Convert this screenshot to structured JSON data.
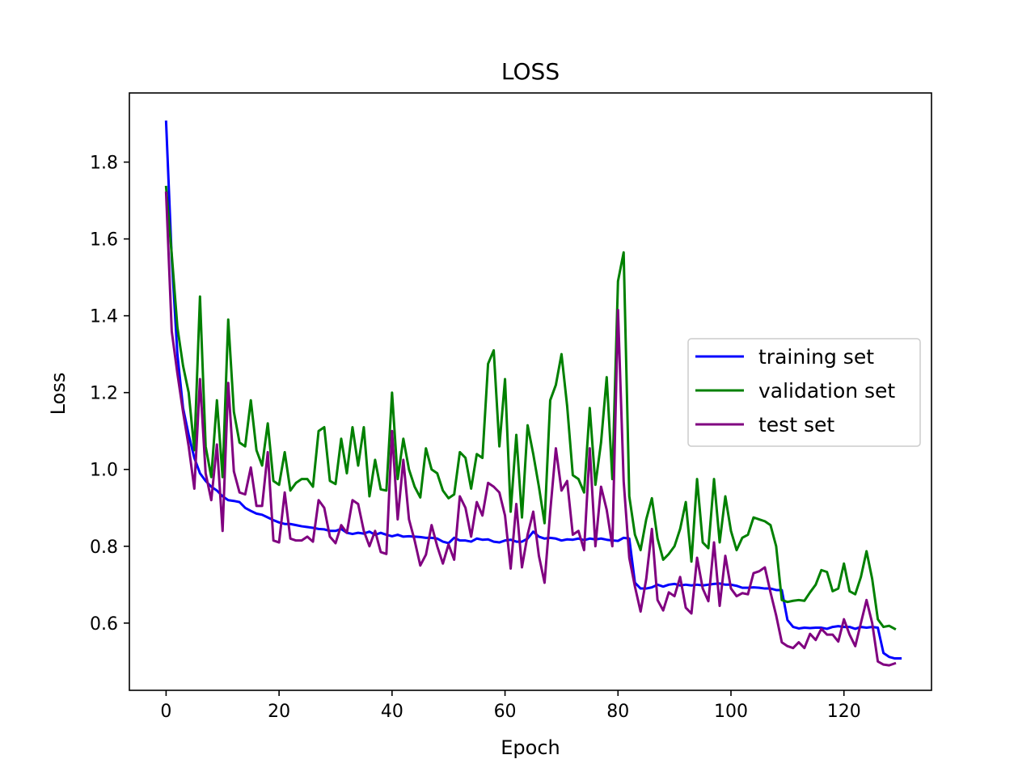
{
  "chart_data": {
    "type": "line",
    "title": "LOSS",
    "xlabel": "Epoch",
    "ylabel": "Loss",
    "xlim": [
      -6.5,
      135.5
    ],
    "ylim": [
      0.425,
      1.98
    ],
    "xticks": [
      0,
      20,
      40,
      60,
      80,
      100,
      120
    ],
    "yticks": [
      0.6,
      0.8,
      1.0,
      1.2,
      1.4,
      1.6,
      1.8
    ],
    "xtick_labels": [
      "0",
      "20",
      "40",
      "60",
      "80",
      "100",
      "120"
    ],
    "ytick_labels": [
      "0.6",
      "0.8",
      "1.0",
      "1.2",
      "1.4",
      "1.6",
      "1.8"
    ],
    "grid": false,
    "legend_position": "center-right",
    "series": [
      {
        "name": "training set",
        "color": "#0000ff",
        "values": [
          1.905,
          1.55,
          1.3,
          1.16,
          1.09,
          1.03,
          0.99,
          0.97,
          0.955,
          0.945,
          0.93,
          0.92,
          0.918,
          0.915,
          0.9,
          0.892,
          0.885,
          0.882,
          0.875,
          0.868,
          0.862,
          0.858,
          0.858,
          0.855,
          0.852,
          0.85,
          0.848,
          0.845,
          0.844,
          0.84,
          0.84,
          0.845,
          0.835,
          0.832,
          0.835,
          0.833,
          0.838,
          0.83,
          0.835,
          0.83,
          0.826,
          0.83,
          0.825,
          0.826,
          0.825,
          0.824,
          0.822,
          0.822,
          0.82,
          0.812,
          0.808,
          0.822,
          0.815,
          0.815,
          0.812,
          0.82,
          0.817,
          0.818,
          0.812,
          0.81,
          0.815,
          0.817,
          0.812,
          0.812,
          0.82,
          0.838,
          0.825,
          0.82,
          0.822,
          0.82,
          0.815,
          0.818,
          0.817,
          0.82,
          0.816,
          0.82,
          0.818,
          0.82,
          0.817,
          0.815,
          0.814,
          0.822,
          0.82,
          0.705,
          0.69,
          0.69,
          0.693,
          0.7,
          0.695,
          0.7,
          0.702,
          0.698,
          0.7,
          0.698,
          0.7,
          0.698,
          0.7,
          0.702,
          0.703,
          0.7,
          0.7,
          0.697,
          0.692,
          0.692,
          0.693,
          0.692,
          0.69,
          0.69,
          0.686,
          0.686,
          0.608,
          0.59,
          0.586,
          0.588,
          0.587,
          0.588,
          0.588,
          0.585,
          0.59,
          0.592,
          0.59,
          0.59,
          0.585,
          0.59,
          0.588,
          0.59,
          0.588,
          0.522,
          0.512,
          0.508,
          0.508
        ]
      },
      {
        "name": "validation set",
        "color": "#008000",
        "values": [
          1.735,
          1.56,
          1.37,
          1.27,
          1.2,
          1.05,
          1.45,
          1.06,
          0.98,
          1.18,
          0.98,
          1.39,
          1.15,
          1.07,
          1.06,
          1.18,
          1.05,
          1.01,
          1.12,
          0.97,
          0.96,
          1.045,
          0.945,
          0.965,
          0.975,
          0.975,
          0.955,
          1.1,
          1.11,
          0.97,
          0.962,
          1.08,
          0.99,
          1.11,
          1.01,
          1.11,
          0.93,
          1.025,
          0.948,
          0.945,
          1.2,
          0.975,
          1.08,
          1.0,
          0.955,
          0.927,
          1.055,
          1.0,
          0.99,
          0.945,
          0.925,
          0.935,
          1.045,
          1.03,
          0.95,
          1.04,
          1.03,
          1.275,
          1.31,
          1.06,
          1.235,
          0.89,
          1.09,
          0.875,
          1.115,
          1.04,
          0.955,
          0.86,
          1.18,
          1.22,
          1.3,
          1.165,
          0.985,
          0.975,
          0.94,
          1.16,
          0.96,
          1.07,
          1.24,
          0.975,
          1.49,
          1.565,
          0.93,
          0.83,
          0.79,
          0.87,
          0.925,
          0.82,
          0.765,
          0.78,
          0.8,
          0.845,
          0.915,
          0.76,
          0.975,
          0.81,
          0.795,
          0.975,
          0.81,
          0.93,
          0.84,
          0.79,
          0.822,
          0.83,
          0.875,
          0.87,
          0.865,
          0.855,
          0.8,
          0.66,
          0.655,
          0.658,
          0.66,
          0.658,
          0.68,
          0.7,
          0.738,
          0.733,
          0.683,
          0.69,
          0.755,
          0.683,
          0.675,
          0.72,
          0.787,
          0.715,
          0.61,
          0.59,
          0.593,
          0.585
        ]
      },
      {
        "name": "test set",
        "color": "#800080",
        "values": [
          1.72,
          1.36,
          1.25,
          1.15,
          1.06,
          0.95,
          1.235,
          0.99,
          0.92,
          1.065,
          0.84,
          1.225,
          0.995,
          0.94,
          0.935,
          1.005,
          0.905,
          0.905,
          1.045,
          0.815,
          0.81,
          0.94,
          0.82,
          0.815,
          0.815,
          0.825,
          0.812,
          0.92,
          0.9,
          0.825,
          0.808,
          0.855,
          0.835,
          0.92,
          0.91,
          0.84,
          0.8,
          0.84,
          0.785,
          0.78,
          1.1,
          0.87,
          1.025,
          0.87,
          0.815,
          0.75,
          0.778,
          0.855,
          0.8,
          0.755,
          0.805,
          0.765,
          0.93,
          0.9,
          0.825,
          0.915,
          0.88,
          0.965,
          0.955,
          0.94,
          0.88,
          0.742,
          0.91,
          0.745,
          0.83,
          0.89,
          0.775,
          0.705,
          0.89,
          1.055,
          0.945,
          0.97,
          0.83,
          0.84,
          0.79,
          1.055,
          0.8,
          0.955,
          0.895,
          0.8,
          1.415,
          0.97,
          0.77,
          0.695,
          0.63,
          0.715,
          0.845,
          0.66,
          0.633,
          0.68,
          0.67,
          0.72,
          0.64,
          0.625,
          0.77,
          0.69,
          0.657,
          0.81,
          0.645,
          0.775,
          0.69,
          0.67,
          0.678,
          0.675,
          0.73,
          0.735,
          0.745,
          0.68,
          0.62,
          0.55,
          0.54,
          0.535,
          0.55,
          0.535,
          0.572,
          0.556,
          0.585,
          0.57,
          0.57,
          0.552,
          0.61,
          0.57,
          0.54,
          0.6,
          0.66,
          0.6,
          0.5,
          0.492,
          0.49,
          0.495
        ]
      }
    ]
  }
}
